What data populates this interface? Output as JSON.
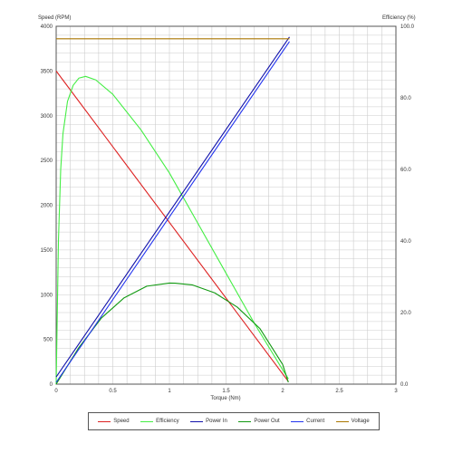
{
  "chart_data": {
    "type": "line",
    "title": "",
    "xlabel": "Torque (Nm)",
    "ylabel": "Speed (RPM)",
    "y2label": "Efficiency (%)",
    "xlim": [
      0,
      3
    ],
    "ylim": [
      0,
      4000
    ],
    "y2lim": [
      0,
      100
    ],
    "x_ticks": [
      "0",
      "0.5",
      "1",
      "1.5",
      "2",
      "2.5",
      "3"
    ],
    "y_ticks": [
      "0",
      "500",
      "1000",
      "1500",
      "2000",
      "2500",
      "3000",
      "3500",
      "4000"
    ],
    "y2_ticks": [
      "0.0",
      "20.0",
      "40.0",
      "60.0",
      "80.0",
      "100.0"
    ],
    "grid": true,
    "legend_position": "bottom",
    "series": [
      {
        "name": "Speed",
        "color": "#dd2222",
        "axis": "left",
        "x": [
          0,
          2.05
        ],
        "y": [
          3500,
          30
        ]
      },
      {
        "name": "Efficiency",
        "color": "#44ee44",
        "axis": "right",
        "x": [
          0,
          0.01,
          0.02,
          0.04,
          0.06,
          0.1,
          0.15,
          0.2,
          0.26,
          0.35,
          0.5,
          0.75,
          1.0,
          1.25,
          1.5,
          1.75,
          2.0,
          2.05
        ],
        "y": [
          0,
          20,
          40,
          60,
          70,
          79,
          83.5,
          85.5,
          86,
          85,
          81,
          71,
          59,
          45,
          31,
          17,
          4,
          1.5
        ]
      },
      {
        "name": "Power In",
        "color": "#1111aa",
        "axis": "left",
        "x": [
          0,
          2.06
        ],
        "y": [
          80,
          3880
        ]
      },
      {
        "name": "Power Out",
        "color": "#119911",
        "axis": "left",
        "x": [
          0,
          0.2,
          0.4,
          0.6,
          0.8,
          1.0,
          1.05,
          1.2,
          1.4,
          1.6,
          1.8,
          2.0,
          2.05
        ],
        "y": [
          0,
          408,
          740,
          965,
          1095,
          1130,
          1128,
          1110,
          1020,
          860,
          620,
          220,
          20
        ]
      },
      {
        "name": "Current",
        "color": "#2233ee",
        "axis": "left",
        "x": [
          0,
          2.06
        ],
        "y": [
          20,
          3830
        ]
      },
      {
        "name": "Voltage",
        "color": "#aa7700",
        "axis": "left",
        "x": [
          0,
          2.06
        ],
        "y": [
          3860,
          3860
        ]
      }
    ]
  }
}
